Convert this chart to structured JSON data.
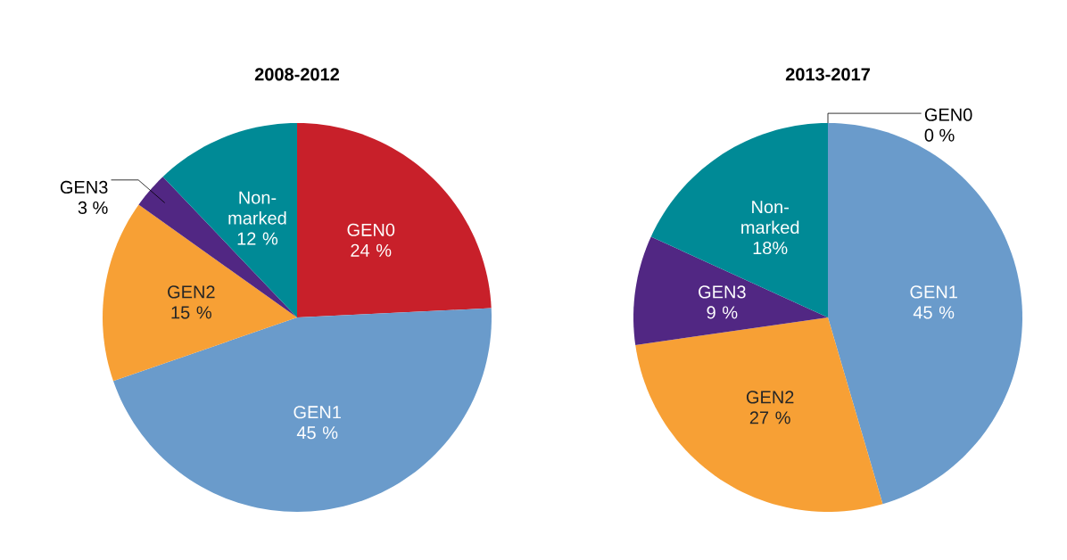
{
  "chart_data": [
    {
      "type": "pie",
      "title": "2008-2012",
      "categories": [
        "GEN0",
        "GEN1",
        "GEN2",
        "GEN3",
        "Non-marked"
      ],
      "values": [
        24,
        45,
        15,
        3,
        12
      ],
      "value_labels": [
        "24 %",
        "45 %",
        "15 %",
        "3 %",
        "12 %"
      ],
      "colors": [
        "#c8202a",
        "#6a9bcb",
        "#f7a035",
        "#512783",
        "#008a96"
      ]
    },
    {
      "type": "pie",
      "title": "2013-2017",
      "categories": [
        "GEN0",
        "GEN1",
        "GEN2",
        "GEN3",
        "Non-marked"
      ],
      "values": [
        0,
        45,
        27,
        9,
        18
      ],
      "value_labels": [
        "0 %",
        "45 %",
        "27 %",
        "9 %",
        "18%"
      ],
      "colors": [
        "#c8202a",
        "#6a9bcb",
        "#f7a035",
        "#512783",
        "#008a96"
      ]
    }
  ]
}
